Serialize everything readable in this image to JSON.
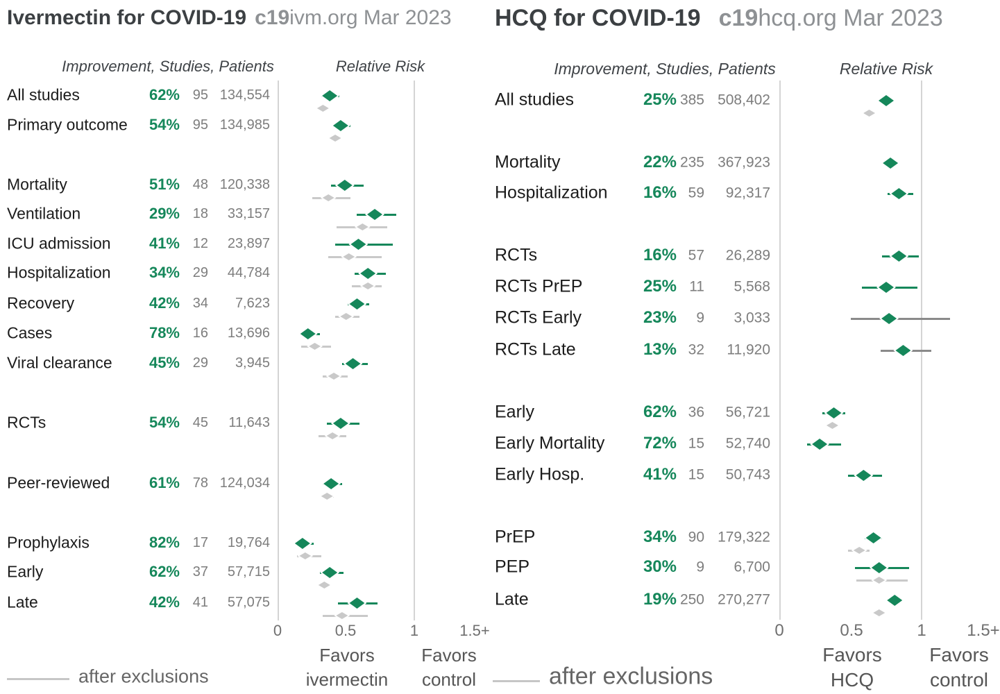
{
  "colors": {
    "green": "#15875A",
    "gray_marker": "#c9c9c9",
    "gray_ci_wide": "#8a8a8a",
    "label_text": "#1b1b1b",
    "counts_text": "#7d7d7d",
    "title_text": "#3c4043",
    "title_muted": "#8e9194",
    "gridline": "#d4d4d4",
    "tick_text": "#6f6f6f",
    "favors_text": "#565656",
    "legend_text": "#666666"
  },
  "chart_data": [
    {
      "type": "forest",
      "title": "Ivermectin for COVID-19",
      "brand_bold": "c19",
      "brand_rest": "ivm.org Mar 2023",
      "columns_header": "Improvement, Studies, Patients",
      "axis_title": "Relative Risk",
      "x_ticks": [
        "0",
        "0.5",
        "1",
        "1.5+"
      ],
      "xlim": [
        0,
        1.52
      ],
      "favors_treatment": [
        "Favors",
        "ivermectin"
      ],
      "favors_control": [
        "Favors",
        "control"
      ],
      "legend_after_exclusions": "after exclusions",
      "rows": [
        {
          "label": "All studies",
          "improvement": "62%",
          "studies": "95",
          "patients": "134,554",
          "rr": 0.38,
          "ci": [
            0.32,
            0.45
          ],
          "after_exclusions": {
            "rr": 0.33,
            "ci": [
              0.3,
              0.37
            ]
          }
        },
        {
          "label": "Primary outcome",
          "improvement": "54%",
          "studies": "95",
          "patients": "134,985",
          "rr": 0.46,
          "ci": [
            0.42,
            0.53
          ],
          "after_exclusions": {
            "rr": 0.42,
            "ci": [
              0.39,
              0.46
            ]
          }
        },
        {
          "label": "Mortality",
          "improvement": "51%",
          "studies": "48",
          "patients": "120,338",
          "rr": 0.49,
          "ci": [
            0.39,
            0.63
          ],
          "after_exclusions": {
            "rr": 0.37,
            "ci": [
              0.25,
              0.53
            ]
          }
        },
        {
          "label": "Ventilation",
          "improvement": "29%",
          "studies": "18",
          "patients": "33,157",
          "rr": 0.71,
          "ci": [
            0.58,
            0.87
          ],
          "after_exclusions": {
            "rr": 0.62,
            "ci": [
              0.43,
              0.8
            ]
          }
        },
        {
          "label": "ICU admission",
          "improvement": "41%",
          "studies": "12",
          "patients": "23,897",
          "rr": 0.59,
          "ci": [
            0.42,
            0.84
          ],
          "after_exclusions": {
            "rr": 0.52,
            "ci": [
              0.37,
              0.76
            ]
          }
        },
        {
          "label": "Hospitalization",
          "improvement": "34%",
          "studies": "29",
          "patients": "44,784",
          "rr": 0.66,
          "ci": [
            0.56,
            0.79
          ],
          "after_exclusions": {
            "rr": 0.66,
            "ci": [
              0.54,
              0.76
            ]
          }
        },
        {
          "label": "Recovery",
          "improvement": "42%",
          "studies": "34",
          "patients": "7,623",
          "rr": 0.58,
          "ci": [
            0.51,
            0.67
          ],
          "after_exclusions": {
            "rr": 0.5,
            "ci": [
              0.42,
              0.6
            ]
          }
        },
        {
          "label": "Cases",
          "improvement": "78%",
          "studies": "16",
          "patients": "13,696",
          "rr": 0.22,
          "ci": [
            0.16,
            0.31
          ],
          "after_exclusions": {
            "rr": 0.27,
            "ci": [
              0.17,
              0.39
            ]
          }
        },
        {
          "label": "Viral clearance",
          "improvement": "45%",
          "studies": "29",
          "patients": "3,945",
          "rr": 0.55,
          "ci": [
            0.47,
            0.66
          ],
          "after_exclusions": {
            "rr": 0.41,
            "ci": [
              0.33,
              0.51
            ]
          }
        },
        {
          "label": "RCTs",
          "improvement": "54%",
          "studies": "45",
          "patients": "11,643",
          "rr": 0.46,
          "ci": [
            0.36,
            0.6
          ],
          "after_exclusions": {
            "rr": 0.4,
            "ci": [
              0.3,
              0.5
            ]
          }
        },
        {
          "label": "Peer-reviewed",
          "improvement": "61%",
          "studies": "78",
          "patients": "124,034",
          "rr": 0.39,
          "ci": [
            0.33,
            0.47
          ],
          "after_exclusions": {
            "rr": 0.36,
            "ci": [
              0.32,
              0.41
            ]
          }
        },
        {
          "label": "Prophylaxis",
          "improvement": "82%",
          "studies": "17",
          "patients": "19,764",
          "rr": 0.18,
          "ci": [
            0.13,
            0.26
          ],
          "after_exclusions": {
            "rr": 0.2,
            "ci": [
              0.14,
              0.32
            ]
          }
        },
        {
          "label": "Early",
          "improvement": "62%",
          "studies": "37",
          "patients": "57,715",
          "rr": 0.38,
          "ci": [
            0.31,
            0.48
          ],
          "after_exclusions": {
            "rr": 0.34,
            "ci": [
              0.3,
              0.38
            ]
          }
        },
        {
          "label": "Late",
          "improvement": "42%",
          "studies": "41",
          "patients": "57,075",
          "rr": 0.58,
          "ci": [
            0.44,
            0.73
          ],
          "after_exclusions": {
            "rr": 0.47,
            "ci": [
              0.33,
              0.66
            ]
          }
        }
      ]
    },
    {
      "type": "forest",
      "title": "HCQ for COVID-19",
      "brand_bold": "c19",
      "brand_rest": "hcq.org Mar 2023",
      "columns_header": "Improvement, Studies, Patients",
      "axis_title": "Relative Risk",
      "x_ticks": [
        "0",
        "0.5",
        "1",
        "1.5+"
      ],
      "xlim": [
        0,
        1.52
      ],
      "favors_treatment": [
        "Favors",
        "HCQ"
      ],
      "favors_control": [
        "Favors",
        "control"
      ],
      "legend_after_exclusions": "after exclusions",
      "rows": [
        {
          "label": "All studies",
          "improvement": "25%",
          "studies": "385",
          "patients": "508,402",
          "rr": 0.75,
          "ci": [
            0.72,
            0.78
          ],
          "after_exclusions": {
            "rr": 0.63,
            "ci": [
              0.61,
              0.65
            ]
          }
        },
        {
          "label": "Mortality",
          "improvement": "22%",
          "studies": "235",
          "patients": "367,923",
          "rr": 0.78,
          "ci": [
            0.76,
            0.8
          ],
          "after_exclusions": null
        },
        {
          "label": "Hospitalization",
          "improvement": "16%",
          "studies": "59",
          "patients": "92,317",
          "rr": 0.84,
          "ci": [
            0.76,
            0.94
          ],
          "after_exclusions": null
        },
        {
          "label": "RCTs",
          "improvement": "16%",
          "studies": "57",
          "patients": "26,289",
          "rr": 0.84,
          "ci": [
            0.72,
            0.98
          ],
          "after_exclusions": null
        },
        {
          "label": "RCTs PrEP",
          "improvement": "25%",
          "studies": "11",
          "patients": "5,568",
          "rr": 0.75,
          "ci": [
            0.58,
            0.97
          ],
          "after_exclusions": null
        },
        {
          "label": "RCTs Early",
          "improvement": "23%",
          "studies": "9",
          "patients": "3,033",
          "rr": 0.77,
          "ci": [
            0.5,
            1.2
          ],
          "ci_gray": true,
          "after_exclusions": null
        },
        {
          "label": "RCTs Late",
          "improvement": "13%",
          "studies": "32",
          "patients": "11,920",
          "rr": 0.87,
          "ci": [
            0.71,
            1.07
          ],
          "ci_gray": true,
          "after_exclusions": null
        },
        {
          "label": "Early",
          "improvement": "62%",
          "studies": "36",
          "patients": "56,721",
          "rr": 0.38,
          "ci": [
            0.3,
            0.46
          ],
          "after_exclusions": {
            "rr": 0.37,
            "ci": [
              0.33,
              0.41
            ]
          }
        },
        {
          "label": "Early Mortality",
          "improvement": "72%",
          "studies": "15",
          "patients": "52,740",
          "rr": 0.28,
          "ci": [
            0.19,
            0.43
          ],
          "after_exclusions": null
        },
        {
          "label": "Early Hosp.",
          "improvement": "41%",
          "studies": "15",
          "patients": "50,743",
          "rr": 0.59,
          "ci": [
            0.48,
            0.72
          ],
          "after_exclusions": null
        },
        {
          "label": "PrEP",
          "improvement": "34%",
          "studies": "90",
          "patients": "179,322",
          "rr": 0.66,
          "ci": [
            0.6,
            0.72
          ],
          "after_exclusions": {
            "rr": 0.56,
            "ci": [
              0.48,
              0.63
            ]
          }
        },
        {
          "label": "PEP",
          "improvement": "30%",
          "studies": "9",
          "patients": "6,700",
          "rr": 0.7,
          "ci": [
            0.53,
            0.91
          ],
          "after_exclusions": {
            "rr": 0.7,
            "ci": [
              0.54,
              0.9
            ]
          }
        },
        {
          "label": "Late",
          "improvement": "19%",
          "studies": "250",
          "patients": "270,277",
          "rr": 0.81,
          "ci": [
            0.79,
            0.83
          ],
          "after_exclusions": {
            "rr": 0.7,
            "ci": [
              0.68,
              0.72
            ]
          }
        }
      ]
    }
  ]
}
